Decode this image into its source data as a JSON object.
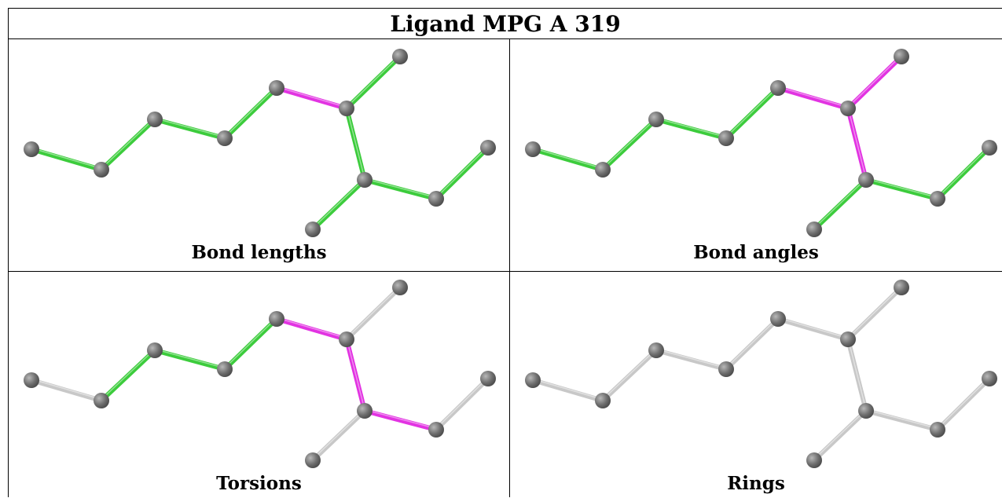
{
  "title": "Ligand MPG A 319",
  "panels": [
    {
      "caption": "Bond lengths"
    },
    {
      "caption": "Bond angles"
    },
    {
      "caption": "Torsions"
    },
    {
      "caption": "Rings"
    }
  ],
  "colors": {
    "highlight": "#e233e2",
    "normal": "#3ccc3c",
    "neutral": "#c8c8c8",
    "atom": "#6e6e6e"
  }
}
